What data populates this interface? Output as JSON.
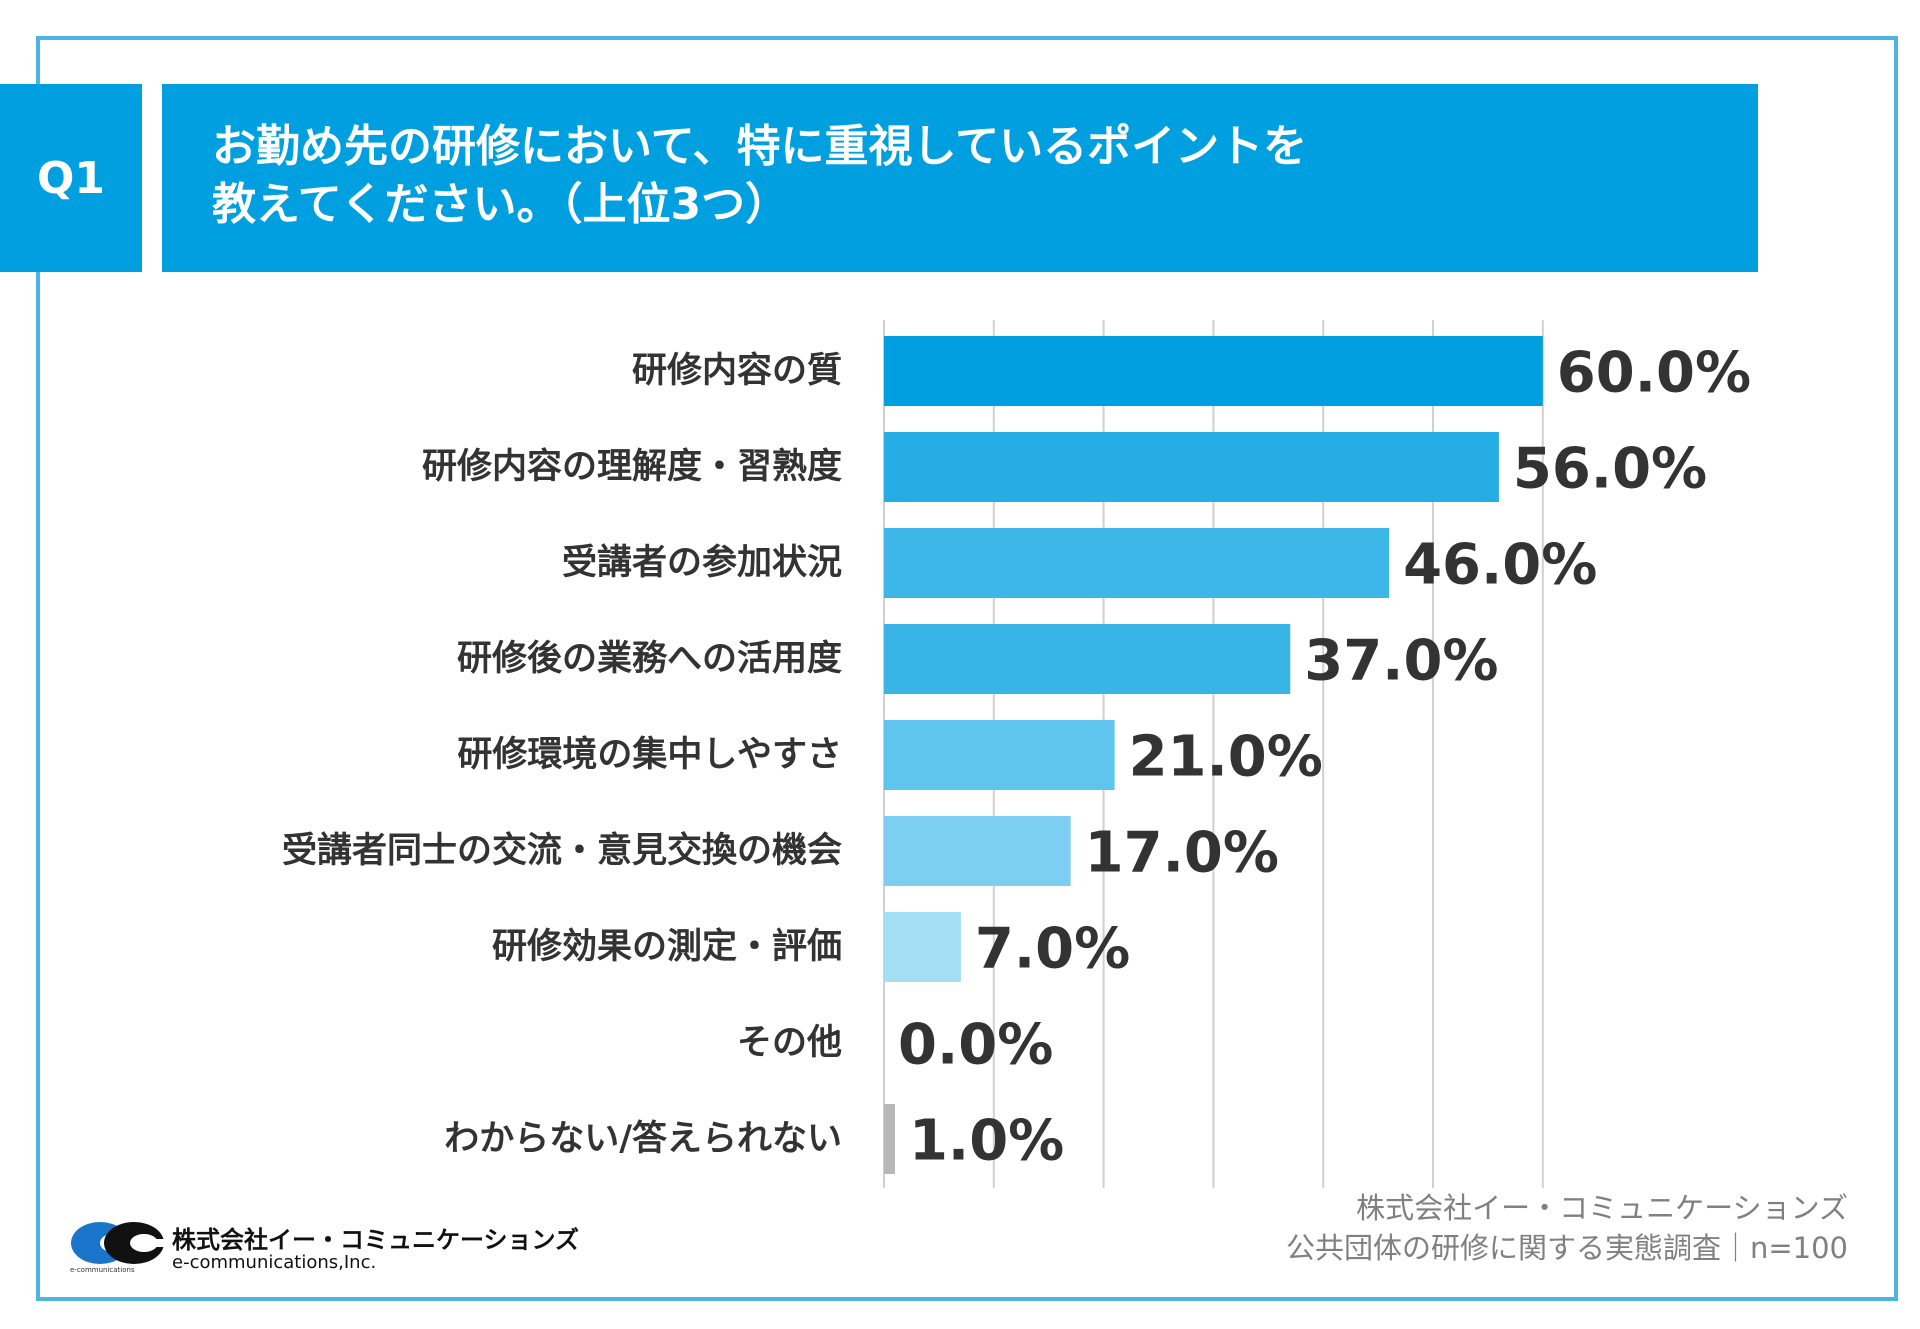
{
  "question": {
    "badge": "Q1",
    "title_line1": "お勤め先の研修において、特に重視しているポイントを",
    "title_line2": "教えてください。（上位3つ）"
  },
  "colors": {
    "frame": "#4cb6e0",
    "header": "#00a0e0",
    "grid": "#d0d0d0",
    "text": "#333333"
  },
  "chart_data": {
    "type": "bar",
    "orientation": "horizontal",
    "categories": [
      "研修内容の質",
      "研修内容の理解度・習熟度",
      "受講者の参加状況",
      "研修後の業務への活用度",
      "研修環境の集中しやすさ",
      "受講者同士の交流・意見交換の機会",
      "研修効果の測定・評価",
      "その他",
      "わからない/答えられない"
    ],
    "values": [
      60.0,
      56.0,
      46.0,
      37.0,
      21.0,
      17.0,
      7.0,
      0.0,
      1.0
    ],
    "value_labels": [
      "60.0%",
      "56.0%",
      "46.0%",
      "37.0%",
      "21.0%",
      "17.0%",
      "7.0%",
      "0.0%",
      "1.0%"
    ],
    "bar_colors": [
      "#00a0e0",
      "#26ade5",
      "#3db7e8",
      "#38b4e7",
      "#5fc5ee",
      "#7ccff0",
      "#a3def5",
      "#c8c8c8",
      "#b8b8b8"
    ],
    "xlim": [
      0,
      60
    ],
    "grid_step": 10,
    "grid": true
  },
  "source": {
    "company": "株式会社イー・コミュニケーションズ",
    "survey": "公共団体の研修に関する実態調査｜n=100"
  },
  "logo": {
    "name_ja": "株式会社イー・コミュニケーションズ",
    "name_en": "e-communications,Inc.",
    "small_text": "e-communications"
  }
}
